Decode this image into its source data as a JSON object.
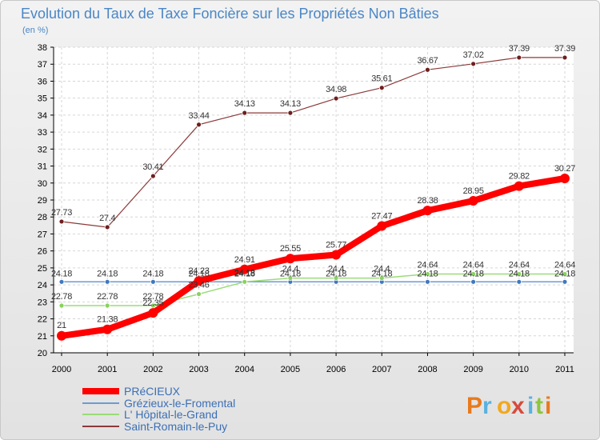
{
  "chart_data": {
    "type": "line",
    "title": "Evolution du Taux de Taxe Foncière sur les Propriétés Non Bâties",
    "ylabel": "(en %)",
    "xlabel": "",
    "x": [
      "2000",
      "2001",
      "2002",
      "2003",
      "2004",
      "2005",
      "2006",
      "2007",
      "2008",
      "2009",
      "2010",
      "2011"
    ],
    "ylim": [
      20,
      38
    ],
    "yticks": [
      "20",
      "21",
      "22",
      "23",
      "24",
      "25",
      "26",
      "27",
      "28",
      "29",
      "30",
      "31",
      "32",
      "33",
      "34",
      "35",
      "36",
      "37",
      "38"
    ],
    "series": [
      {
        "name": "PRéCIEUX",
        "color": "#ff0000",
        "values": [
          21,
          21.38,
          22.35,
          24.23,
          24.91,
          25.55,
          25.77,
          27.47,
          28.38,
          28.95,
          29.82,
          30.27
        ],
        "labels": [
          "21",
          "21.38",
          "22.35",
          "24.23",
          "24.91",
          "25.55",
          "25.77",
          "27.47",
          "28.38",
          "28.95",
          "29.82",
          "30.27"
        ]
      },
      {
        "name": "Grézieux-le-Fromental",
        "color": "#6c9bd2",
        "values": [
          24.18,
          24.18,
          24.18,
          24.18,
          24.18,
          24.18,
          24.18,
          24.18,
          24.18,
          24.18,
          24.18,
          24.18
        ],
        "labels": [
          "24.18",
          "24.18",
          "24.18",
          "24.18",
          "24.18",
          "24.18",
          "24.18",
          "24.18",
          "24.18",
          "24.18",
          "24.18",
          "24.18"
        ]
      },
      {
        "name": "L' Hôpital-le-Grand",
        "color": "#99dd77",
        "values": [
          22.78,
          22.78,
          22.78,
          23.46,
          24.18,
          24.4,
          24.4,
          24.4,
          24.64,
          24.64,
          24.64,
          24.64
        ],
        "labels": [
          "22.78",
          "22.78",
          "22.78",
          "23.46",
          "24.18",
          "24.4",
          "24.4",
          "24.4",
          "24.64",
          "24.64",
          "24.64",
          "24.64"
        ]
      },
      {
        "name": "Saint-Romain-le-Puy",
        "color": "#8b3a3a",
        "values": [
          27.73,
          27.4,
          30.41,
          33.44,
          34.13,
          34.13,
          34.98,
          35.61,
          36.67,
          37.02,
          37.39,
          37.39
        ],
        "labels": [
          "27.73",
          "27.4",
          "30.41",
          "33.44",
          "34.13",
          "34.13",
          "34.98",
          "35.61",
          "36.67",
          "37.02",
          "37.39",
          "37.39"
        ]
      }
    ]
  },
  "logo": {
    "letters": [
      "P",
      "r",
      "o",
      "x",
      "i",
      "t",
      "i"
    ],
    "colors": [
      "#e87a1d",
      "#59b1e0",
      "#f2a81d",
      "#d64b3c",
      "#59b1e0",
      "#8cc63f",
      "#e87a1d"
    ]
  }
}
